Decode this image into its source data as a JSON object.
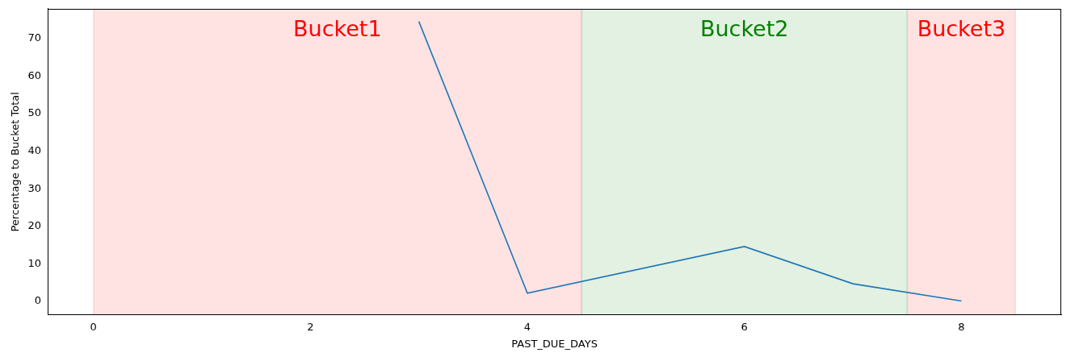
{
  "chart_data": {
    "type": "line",
    "x_label": "PAST_DUE_DAYS",
    "y_label": "Percentage to Bucket Total",
    "x": [
      3,
      4,
      6,
      7,
      8
    ],
    "values": [
      74.5,
      2.2,
      14.6,
      4.7,
      0.1
    ],
    "color": "#1f77b4",
    "xlim": [
      -0.42,
      8.92
    ],
    "xticks": [
      0,
      2,
      4,
      6,
      8
    ],
    "ylim": [
      -3.6,
      77.9
    ],
    "yticks": [
      0,
      10,
      20,
      30,
      40,
      50,
      60,
      70
    ],
    "grid": false,
    "annotations": [
      {
        "text": "Bucket1",
        "x_start": 0,
        "x_end": 4.5,
        "x": 2.25,
        "y": 72,
        "color": "#ff0000"
      },
      {
        "text": "Bucket2",
        "x_start": 4.5,
        "x_end": 7.5,
        "x": 6,
        "y": 72,
        "color": "#008000"
      },
      {
        "text": "Bucket3",
        "x_start": 7.5,
        "x_end": 8.5,
        "x": 8,
        "y": 72,
        "color": "#ff0000"
      }
    ]
  }
}
